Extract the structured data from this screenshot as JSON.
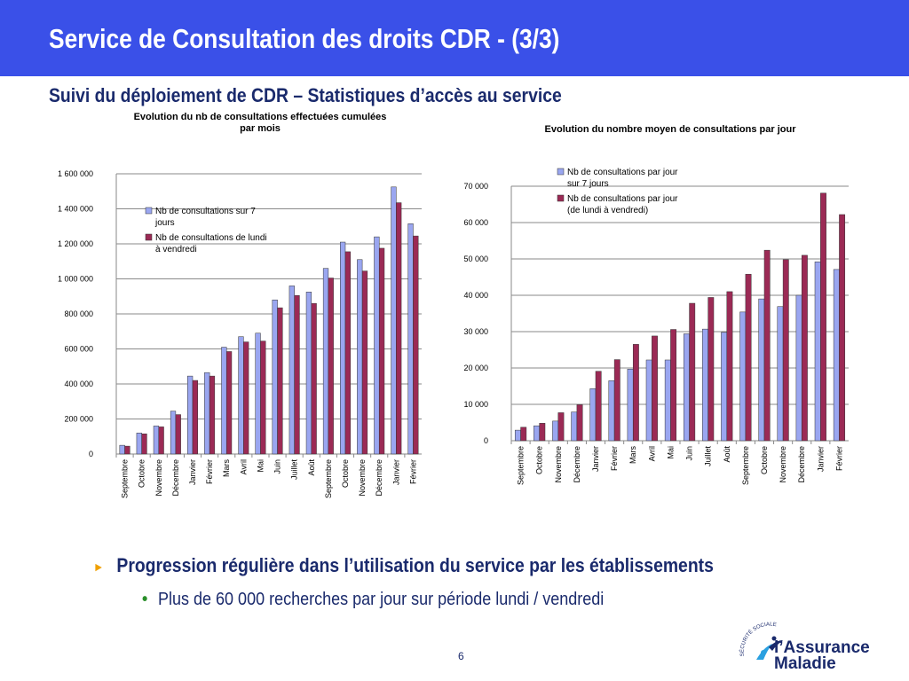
{
  "header": {
    "title": "Service de Consultation des droits CDR - (3/3)"
  },
  "subtitle": "Suivi du déploiement de CDR – Statistiques d’accès au service",
  "chart_data": [
    {
      "type": "bar",
      "title": [
        "Evolution du nb de consultations effectuées cumulées",
        "par mois"
      ],
      "categories": [
        "Septembre",
        "Octobre",
        "Novembre",
        "Décembre",
        "Janvier",
        "Février",
        "Mars",
        "Avril",
        "Mai",
        "Juin",
        "Juillet",
        "Août",
        "Septembre",
        "Octobre",
        "Novembre",
        "Décembre",
        "Janvier",
        "Février"
      ],
      "series": [
        {
          "name": [
            "Nb de consultations sur 7",
            "jours"
          ],
          "color": "#9aa6f0",
          "values": [
            50000,
            120000,
            160000,
            245000,
            445000,
            465000,
            610000,
            670000,
            690000,
            880000,
            960000,
            925000,
            1060000,
            1210000,
            1110000,
            1240000,
            1525000,
            1315000
          ]
        },
        {
          "name": [
            "Nb de consultations de lundi",
            "à vendredi"
          ],
          "color": "#9b2a55",
          "values": [
            45000,
            115000,
            155000,
            225000,
            420000,
            445000,
            585000,
            640000,
            645000,
            835000,
            905000,
            860000,
            1005000,
            1155000,
            1045000,
            1175000,
            1435000,
            1245000
          ]
        }
      ],
      "ylim": [
        0,
        1600000
      ],
      "yticks": [
        "0",
        "200 000",
        "400 000",
        "600 000",
        "800 000",
        "1 000 000",
        "1 200 000",
        "1 400 000",
        "1 600 000"
      ],
      "grid": true,
      "legend": "top-left"
    },
    {
      "type": "bar",
      "title": [
        "Evolution du nombre moyen de consultations par jour"
      ],
      "categories": [
        "Septembre",
        "Octobre",
        "Novembre",
        "Décembre",
        "Janvier",
        "Février",
        "Mars",
        "Avril",
        "Mai",
        "Juin",
        "Juillet",
        "Août",
        "Septembre",
        "Octobre",
        "Novembre",
        "Décembre",
        "Janvier",
        "Février"
      ],
      "series": [
        {
          "name": [
            "Nb de consultations par jour",
            "sur 7 jours"
          ],
          "color": "#9aa6f0",
          "values": [
            2900,
            4100,
            5400,
            7900,
            14300,
            16500,
            19700,
            22200,
            22200,
            29400,
            30700,
            29800,
            35400,
            39000,
            36900,
            40000,
            49200,
            47100
          ]
        },
        {
          "name": [
            "Nb de consultations par jour",
            "(de lundi à vendredi)"
          ],
          "color": "#9b2a55",
          "values": [
            3700,
            4800,
            7700,
            9900,
            19100,
            22300,
            26500,
            28800,
            30600,
            37800,
            39400,
            41000,
            45800,
            52400,
            49800,
            51000,
            68100,
            62200
          ]
        }
      ],
      "ylim": [
        0,
        70000
      ],
      "yticks": [
        "0",
        "10 000",
        "20 000",
        "30 000",
        "40 000",
        "50 000",
        "60 000",
        "70 000"
      ],
      "grid": true,
      "legend": "top"
    }
  ],
  "bullets": {
    "main": "Progression régulière dans l’utilisation du service par les établissements",
    "sub": "Plus de 60 000 recherches par jour sur période lundi / vendredi"
  },
  "footer": {
    "page": "6"
  },
  "logo": {
    "line1": "l’Assurance",
    "line2": "Maladie",
    "arc": "SÉCURITÉ SOCIALE"
  }
}
